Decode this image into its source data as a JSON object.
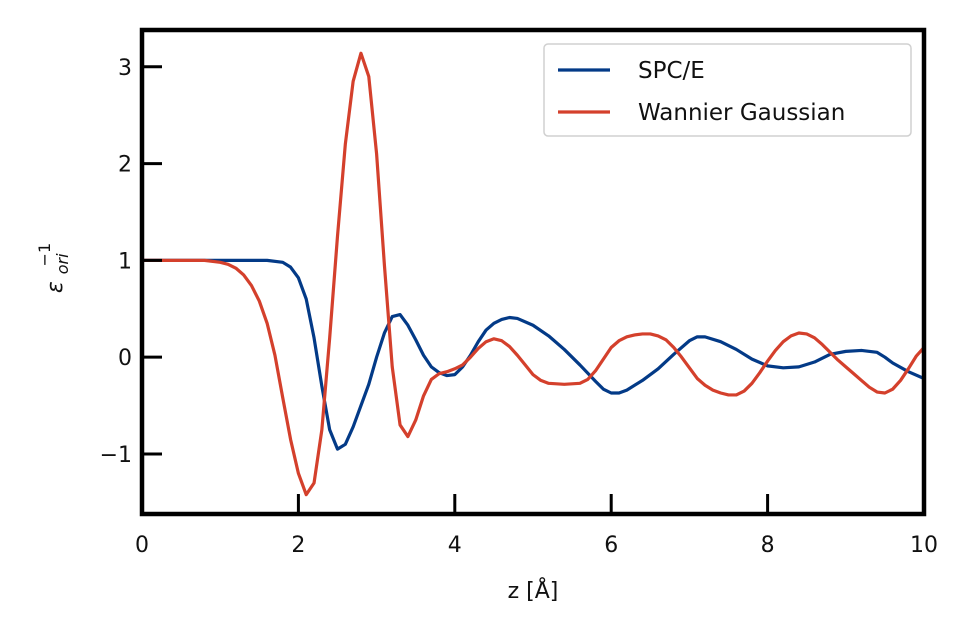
{
  "chart_data": {
    "type": "line",
    "xlabel": "z [Å]",
    "ylabel_base": "ε",
    "ylabel_sub": "ori",
    "ylabel_sup": "−1",
    "xlim": [
      0,
      10
    ],
    "ylim": [
      -1.62,
      3.38
    ],
    "x_ticks": [
      0,
      2,
      4,
      6,
      8,
      10
    ],
    "x_tick_labels": [
      "0",
      "2",
      "4",
      "6",
      "8",
      "10"
    ],
    "y_ticks": [
      -1,
      0,
      1,
      2,
      3
    ],
    "y_tick_labels": [
      "−1",
      "0",
      "1",
      "2",
      "3"
    ],
    "legend_position": "top-right",
    "grid": false,
    "series": [
      {
        "name": "SPC/E",
        "color": "#033a87",
        "x": [
          0,
          0.5,
          1.0,
          1.4,
          1.6,
          1.8,
          1.9,
          2.0,
          2.1,
          2.2,
          2.3,
          2.4,
          2.5,
          2.6,
          2.7,
          2.8,
          2.9,
          3.0,
          3.1,
          3.2,
          3.3,
          3.4,
          3.5,
          3.6,
          3.7,
          3.8,
          3.9,
          4.0,
          4.1,
          4.2,
          4.3,
          4.4,
          4.5,
          4.6,
          4.7,
          4.8,
          5.0,
          5.2,
          5.4,
          5.6,
          5.8,
          5.9,
          6.0,
          6.1,
          6.2,
          6.4,
          6.6,
          6.8,
          7.0,
          7.1,
          7.2,
          7.4,
          7.6,
          7.8,
          8.0,
          8.2,
          8.4,
          8.6,
          8.8,
          9.0,
          9.2,
          9.4,
          9.5,
          9.6,
          9.8,
          10.0
        ],
        "y": [
          1.0,
          1.0,
          1.0,
          1.0,
          1.0,
          0.98,
          0.93,
          0.82,
          0.6,
          0.2,
          -0.3,
          -0.75,
          -0.95,
          -0.9,
          -0.72,
          -0.5,
          -0.28,
          0.0,
          0.25,
          0.42,
          0.44,
          0.33,
          0.18,
          0.02,
          -0.1,
          -0.16,
          -0.19,
          -0.18,
          -0.1,
          0.02,
          0.16,
          0.28,
          0.35,
          0.39,
          0.41,
          0.4,
          0.33,
          0.22,
          0.08,
          -0.08,
          -0.25,
          -0.33,
          -0.37,
          -0.37,
          -0.34,
          -0.24,
          -0.12,
          0.03,
          0.17,
          0.21,
          0.21,
          0.16,
          0.08,
          -0.02,
          -0.09,
          -0.11,
          -0.1,
          -0.05,
          0.03,
          0.06,
          0.07,
          0.05,
          0.0,
          -0.06,
          -0.15,
          -0.22
        ]
      },
      {
        "name": "Wannier Gaussian",
        "color": "#d4402c",
        "x": [
          0,
          0.5,
          0.8,
          1.0,
          1.1,
          1.2,
          1.3,
          1.4,
          1.5,
          1.6,
          1.7,
          1.8,
          1.9,
          2.0,
          2.1,
          2.2,
          2.3,
          2.4,
          2.5,
          2.6,
          2.7,
          2.8,
          2.9,
          3.0,
          3.1,
          3.2,
          3.3,
          3.4,
          3.5,
          3.6,
          3.7,
          3.8,
          3.9,
          4.0,
          4.1,
          4.2,
          4.3,
          4.4,
          4.5,
          4.6,
          4.7,
          4.8,
          4.9,
          5.0,
          5.1,
          5.2,
          5.4,
          5.6,
          5.7,
          5.8,
          5.9,
          6.0,
          6.1,
          6.2,
          6.3,
          6.4,
          6.5,
          6.6,
          6.7,
          6.8,
          6.9,
          7.0,
          7.1,
          7.2,
          7.3,
          7.4,
          7.5,
          7.6,
          7.7,
          7.8,
          7.9,
          8.0,
          8.1,
          8.2,
          8.3,
          8.4,
          8.5,
          8.6,
          8.7,
          8.8,
          8.9,
          9.0,
          9.1,
          9.2,
          9.3,
          9.4,
          9.5,
          9.6,
          9.7,
          9.8,
          9.9,
          10.0
        ],
        "y": [
          1.0,
          1.0,
          1.0,
          0.98,
          0.96,
          0.92,
          0.85,
          0.74,
          0.58,
          0.35,
          0.02,
          -0.42,
          -0.85,
          -1.2,
          -1.42,
          -1.3,
          -0.75,
          0.2,
          1.25,
          2.2,
          2.85,
          3.14,
          2.9,
          2.1,
          0.95,
          -0.1,
          -0.7,
          -0.82,
          -0.65,
          -0.4,
          -0.23,
          -0.17,
          -0.15,
          -0.12,
          -0.08,
          0.0,
          0.09,
          0.16,
          0.19,
          0.17,
          0.11,
          0.02,
          -0.08,
          -0.18,
          -0.24,
          -0.27,
          -0.28,
          -0.27,
          -0.23,
          -0.14,
          -0.02,
          0.1,
          0.17,
          0.21,
          0.23,
          0.24,
          0.24,
          0.22,
          0.18,
          0.1,
          0.0,
          -0.11,
          -0.22,
          -0.29,
          -0.34,
          -0.37,
          -0.39,
          -0.39,
          -0.35,
          -0.27,
          -0.16,
          -0.04,
          0.07,
          0.16,
          0.22,
          0.25,
          0.24,
          0.2,
          0.13,
          0.05,
          -0.03,
          -0.1,
          -0.17,
          -0.24,
          -0.31,
          -0.36,
          -0.37,
          -0.33,
          -0.24,
          -0.12,
          0.01,
          0.1
        ]
      }
    ]
  }
}
